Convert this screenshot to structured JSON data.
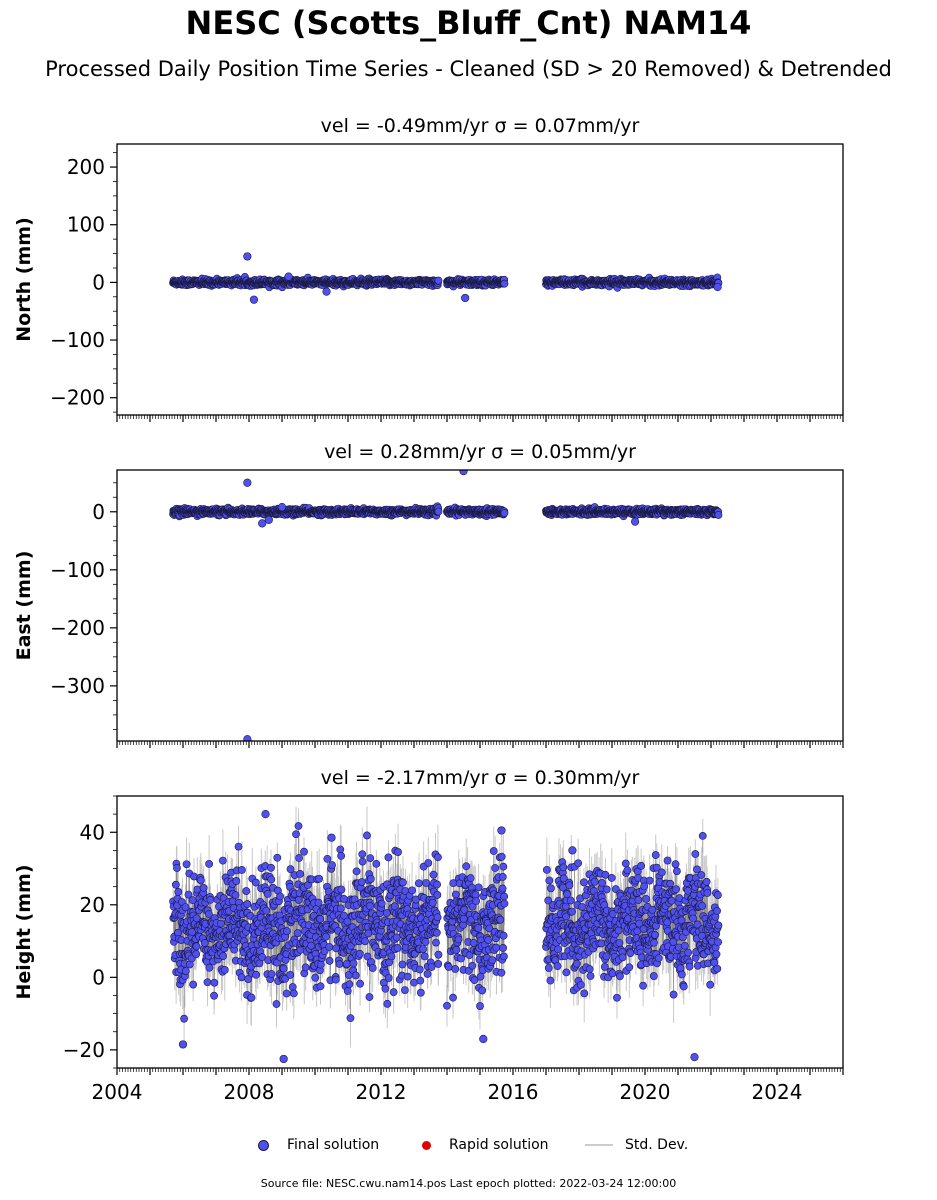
{
  "title": "NESC (Scotts_Bluff_Cnt) NAM14",
  "subtitle": "Processed Daily Position Time Series - Cleaned (SD > 20 Removed) & Detrended",
  "footer": "Source file: NESC.cwu.nam14.pos  Last epoch plotted: 2022-03-24 12:00:00",
  "legend": {
    "final": "Final solution",
    "rapid": "Rapid solution",
    "std": "Std. Dev."
  },
  "colors": {
    "final": "#5050f0",
    "final_edge": "#1a1a40",
    "rapid": "#e00000",
    "std": "#c8c8c8",
    "series_line": "#6a6a6a"
  },
  "chart_data": [
    {
      "type": "scatter",
      "title": "vel = -0.49mm/yr   σ = 0.07mm/yr",
      "ylabel": "North (mm)",
      "xlim": [
        2004,
        2026
      ],
      "ylim": [
        -230,
        240
      ],
      "yticks": [
        -200,
        -100,
        0,
        100,
        200
      ],
      "ytick_labels": [
        "−200",
        "−100",
        "0",
        "100",
        "200"
      ],
      "xtick_labels": [],
      "segments": [
        [
          2005.7,
          2013.75
        ],
        [
          2014.0,
          2015.75
        ],
        [
          2017.0,
          2022.23
        ]
      ],
      "noise": {
        "sd": 2.5,
        "err": 2
      },
      "outliers": [
        {
          "x": 2007.95,
          "y": 45
        },
        {
          "x": 2008.15,
          "y": -30
        },
        {
          "x": 2014.55,
          "y": -27
        },
        {
          "x": 2009.2,
          "y": 10
        },
        {
          "x": 2010.35,
          "y": -16
        },
        {
          "x": 2022.2,
          "y": -8
        }
      ],
      "grid": false,
      "legend": "bottom-center"
    },
    {
      "type": "scatter",
      "title": "vel = 0.28mm/yr   σ = 0.05mm/yr",
      "ylabel": "East (mm)",
      "xlim": [
        2004,
        2026
      ],
      "ylim": [
        -395,
        72
      ],
      "yticks": [
        -300,
        -200,
        -100,
        0
      ],
      "ytick_labels": [
        "−300",
        "−200",
        "−100",
        "0"
      ],
      "xtick_labels": [],
      "segments": [
        [
          2005.7,
          2013.75
        ],
        [
          2014.0,
          2015.75
        ],
        [
          2017.0,
          2022.23
        ]
      ],
      "noise": {
        "sd": 2.5,
        "err": 2
      },
      "outliers": [
        {
          "x": 2007.95,
          "y": 50
        },
        {
          "x": 2014.5,
          "y": 70
        },
        {
          "x": 2007.95,
          "y": -392
        },
        {
          "x": 2008.4,
          "y": -20
        },
        {
          "x": 2019.7,
          "y": -17
        },
        {
          "x": 2009.0,
          "y": 8
        },
        {
          "x": 2008.6,
          "y": -14
        }
      ],
      "grid": false,
      "legend": "bottom-center"
    },
    {
      "type": "scatter",
      "title": "vel = -2.17mm/yr   σ = 0.30mm/yr",
      "ylabel": "Height (mm)",
      "xlim": [
        2004,
        2026
      ],
      "ylim": [
        -25,
        50
      ],
      "yticks": [
        -20,
        0,
        20,
        40
      ],
      "ytick_labels": [
        "−20",
        "0",
        "20",
        "40"
      ],
      "xticks": [
        2004,
        2008,
        2012,
        2016,
        2020,
        2024
      ],
      "xtick_labels": [
        "2004",
        "2008",
        "2012",
        "2016",
        "2020",
        "2024"
      ],
      "segments": [
        [
          2005.7,
          2013.75
        ],
        [
          2014.0,
          2015.75
        ],
        [
          2017.0,
          2022.23
        ]
      ],
      "noise": {
        "sd": 7.5,
        "err": 6
      },
      "mean_by_segment": [
        14,
        14,
        15
      ],
      "outliers": [
        {
          "x": 2008.5,
          "y": 45
        },
        {
          "x": 2009.05,
          "y": -22.5
        },
        {
          "x": 2006.0,
          "y": -18.5
        },
        {
          "x": 2015.1,
          "y": -17
        },
        {
          "x": 2015.65,
          "y": 40.5
        },
        {
          "x": 2021.5,
          "y": -22
        },
        {
          "x": 2010.5,
          "y": 38.5
        },
        {
          "x": 2017.8,
          "y": 35
        }
      ],
      "grid": false,
      "legend": "bottom-center"
    }
  ]
}
